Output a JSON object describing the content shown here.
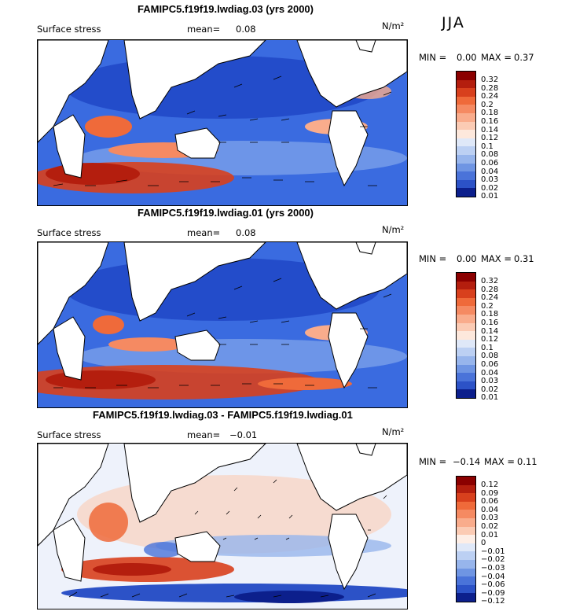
{
  "season": "JJA",
  "panels": [
    {
      "title": "FAMIPC5.f19f19.lwdiag.03 (yrs 2000)",
      "field": "Surface stress",
      "mean_label": "mean=",
      "mean_value": "0.08",
      "units": "N/m²",
      "min_label": "MIN =",
      "min_value": "0.00",
      "max_label": "MAX =",
      "max_value": "0.37",
      "colorbar": [
        "0.32",
        "0.28",
        "0.24",
        "0.2",
        "0.18",
        "0.16",
        "0.14",
        "0.12",
        "0.1",
        "0.08",
        "0.06",
        "0.04",
        "0.03",
        "0.02",
        "0.01"
      ]
    },
    {
      "title": "FAMIPC5.f19f19.lwdiag.01 (yrs 2000)",
      "field": "Surface stress",
      "mean_label": "mean=",
      "mean_value": "0.08",
      "units": "N/m²",
      "min_label": "MIN =",
      "min_value": "0.00",
      "max_label": "MAX =",
      "max_value": "0.31",
      "colorbar": [
        "0.32",
        "0.28",
        "0.24",
        "0.2",
        "0.18",
        "0.16",
        "0.14",
        "0.12",
        "0.1",
        "0.08",
        "0.06",
        "0.04",
        "0.03",
        "0.02",
        "0.01"
      ]
    },
    {
      "title": "FAMIPC5.f19f19.lwdiag.03 - FAMIPC5.f19f19.lwdiag.01",
      "field": "Surface stress",
      "mean_label": "mean=",
      "mean_value": "−0.01",
      "units": "N/m²",
      "min_label": "MIN =",
      "min_value": "−0.14",
      "max_label": "MAX =",
      "max_value": "0.11",
      "colorbar": [
        "0.12",
        "0.09",
        "0.06",
        "0.04",
        "0.03",
        "0.02",
        "0.01",
        "0",
        "−0.01",
        "−0.02",
        "−0.03",
        "−0.04",
        "−0.06",
        "−0.09",
        "−0.12"
      ]
    }
  ],
  "colors": {
    "abs_scale": [
      "#8b0000",
      "#b41e0e",
      "#d8401d",
      "#ef6a3a",
      "#f58a62",
      "#f9ac8c",
      "#fbcbb4",
      "#fde8dc",
      "#dfe8f8",
      "#bcd0f3",
      "#97b5ec",
      "#6f95e3",
      "#4a73d9",
      "#2c52c7",
      "#0c1f8c"
    ],
    "diff_scale": [
      "#8b0000",
      "#b41e0e",
      "#d8401d",
      "#ef6a3a",
      "#f58a62",
      "#f9ac8c",
      "#fbcbb4",
      "#fdeee6",
      "#dfe8f8",
      "#bcd0f3",
      "#97b5ec",
      "#6f95e3",
      "#4a73d9",
      "#2c52c7",
      "#0c1f8c"
    ]
  }
}
